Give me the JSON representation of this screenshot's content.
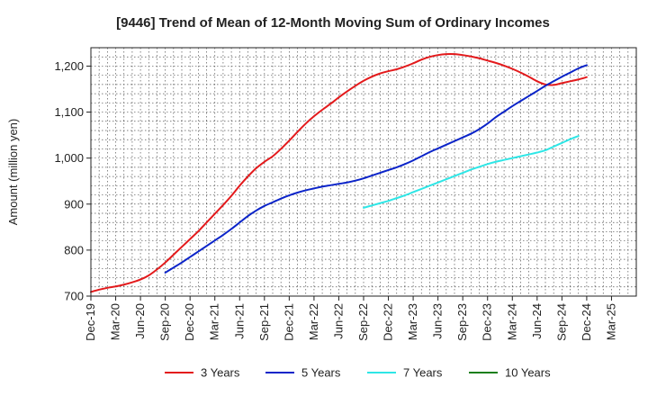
{
  "chart_data": {
    "type": "line",
    "title": "[9446]  Trend of Mean of 12-Month Moving Sum of Ordinary Incomes",
    "xlabel": "",
    "ylabel": "Amount (million yen)",
    "ylim": [
      700,
      1240
    ],
    "yticks": [
      700,
      800,
      900,
      1000,
      1100,
      1200
    ],
    "ytick_labels": [
      "700",
      "800",
      "900",
      "1,000",
      "1,100",
      "1,200"
    ],
    "x_month_offset_range": [
      0,
      66
    ],
    "xticks": [
      {
        "offset": 0,
        "label": "Dec-19"
      },
      {
        "offset": 3,
        "label": "Mar-20"
      },
      {
        "offset": 6,
        "label": "Jun-20"
      },
      {
        "offset": 9,
        "label": "Sep-20"
      },
      {
        "offset": 12,
        "label": "Dec-20"
      },
      {
        "offset": 15,
        "label": "Mar-21"
      },
      {
        "offset": 18,
        "label": "Jun-21"
      },
      {
        "offset": 21,
        "label": "Sep-21"
      },
      {
        "offset": 24,
        "label": "Dec-21"
      },
      {
        "offset": 27,
        "label": "Mar-22"
      },
      {
        "offset": 30,
        "label": "Jun-22"
      },
      {
        "offset": 33,
        "label": "Sep-22"
      },
      {
        "offset": 36,
        "label": "Dec-22"
      },
      {
        "offset": 39,
        "label": "Mar-23"
      },
      {
        "offset": 42,
        "label": "Jun-23"
      },
      {
        "offset": 45,
        "label": "Sep-23"
      },
      {
        "offset": 48,
        "label": "Dec-23"
      },
      {
        "offset": 51,
        "label": "Mar-24"
      },
      {
        "offset": 54,
        "label": "Jun-24"
      },
      {
        "offset": 57,
        "label": "Sep-24"
      },
      {
        "offset": 60,
        "label": "Dec-24"
      },
      {
        "offset": 63,
        "label": "Mar-25"
      }
    ],
    "grid": true,
    "legend_position": "bottom",
    "series": [
      {
        "name": "3 Years",
        "color": "#e31a1c",
        "start_offset": 0,
        "values": [
          709,
          714,
          718,
          721,
          725,
          730,
          736,
          745,
          758,
          773,
          790,
          807,
          824,
          841,
          860,
          879,
          898,
          918,
          940,
          960,
          978,
          992,
          1004,
          1020,
          1038,
          1057,
          1075,
          1091,
          1105,
          1118,
          1132,
          1145,
          1157,
          1168,
          1177,
          1184,
          1189,
          1193,
          1199,
          1206,
          1214,
          1220,
          1224,
          1226,
          1226,
          1224,
          1221,
          1217,
          1212,
          1207,
          1201,
          1194,
          1186,
          1177,
          1167,
          1160,
          1159,
          1163,
          1167,
          1171,
          1176
        ]
      },
      {
        "name": "5 Years",
        "color": "#0b24c9",
        "start_offset": 9,
        "values": [
          751,
          762,
          773,
          785,
          797,
          809,
          821,
          833,
          846,
          860,
          874,
          886,
          896,
          904,
          912,
          919,
          925,
          930,
          934,
          938,
          941,
          944,
          947,
          951,
          956,
          962,
          968,
          974,
          980,
          987,
          995,
          1004,
          1013,
          1021,
          1029,
          1037,
          1045,
          1053,
          1063,
          1075,
          1089,
          1101,
          1113,
          1124,
          1135,
          1146,
          1157,
          1167,
          1177,
          1186,
          1195,
          1202
        ]
      },
      {
        "name": "7 Years",
        "color": "#2ee6e6",
        "start_offset": 33,
        "values": [
          892,
          897,
          902,
          907,
          913,
          919,
          926,
          933,
          940,
          947,
          954,
          961,
          968,
          975,
          981,
          987,
          992,
          996,
          1000,
          1004,
          1008,
          1012,
          1017,
          1025,
          1033,
          1041,
          1048
        ]
      },
      {
        "name": "10 Years",
        "color": "#1a7f1a",
        "start_offset": 0,
        "values": []
      }
    ]
  }
}
